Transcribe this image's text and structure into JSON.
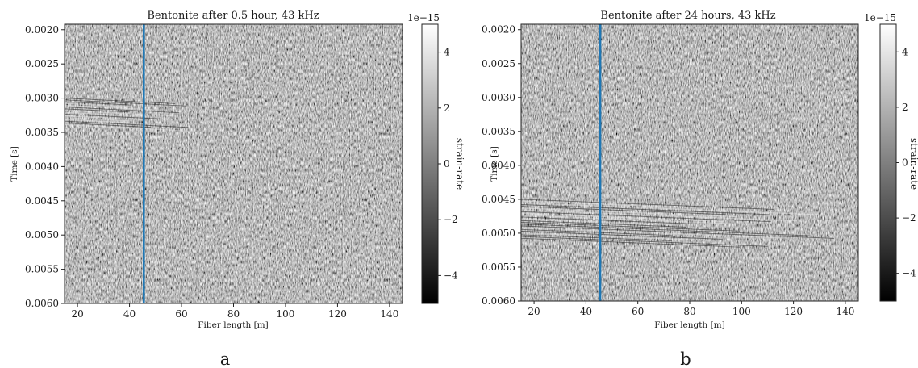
{
  "figure": {
    "panel_letters": [
      "a",
      "b"
    ]
  },
  "chart_data": [
    {
      "type": "heatmap",
      "title": "Bentonite after 0.5 hour, 43 kHz",
      "xlabel": "Fiber length [m]",
      "ylabel": "Time [s]",
      "xlim": [
        15,
        145
      ],
      "ylim": [
        0.006,
        0.00192
      ],
      "y_inverted": true,
      "xticks": [
        20,
        40,
        60,
        80,
        100,
        120,
        140
      ],
      "xtick_labels": [
        "20",
        "40",
        "60",
        "80",
        "100",
        "120",
        "140"
      ],
      "yticks": [
        0.002,
        0.0025,
        0.003,
        0.0035,
        0.004,
        0.0045,
        0.005,
        0.0055,
        0.006
      ],
      "ytick_labels": [
        "0.0020",
        "0.0025",
        "0.0030",
        "0.0035",
        "0.0040",
        "0.0045",
        "0.0050",
        "0.0055",
        "0.0060"
      ],
      "colormap": "gray",
      "colorbar": {
        "label": "strain-rate",
        "exponent_label": "1e−15",
        "range": [
          -5,
          5
        ],
        "ticks": [
          4,
          2,
          0,
          -2,
          -4
        ],
        "tick_labels": [
          "4",
          "2",
          "0",
          "−2",
          "−4"
        ]
      },
      "vertical_line": {
        "x": 45.5,
        "color": "#1f77b4"
      },
      "reflection_band": {
        "start_time": 0.003,
        "end_time": 0.0034,
        "x_extent": [
          15,
          65
        ]
      }
    },
    {
      "type": "heatmap",
      "title": "Bentonite after 24 hours, 43 kHz",
      "xlabel": "Fiber length [m]",
      "ylabel": "Time [s]",
      "xlim": [
        15,
        145
      ],
      "ylim": [
        0.006,
        0.00192
      ],
      "y_inverted": true,
      "xticks": [
        20,
        40,
        60,
        80,
        100,
        120,
        140
      ],
      "xtick_labels": [
        "20",
        "40",
        "60",
        "80",
        "100",
        "120",
        "140"
      ],
      "yticks": [
        0.002,
        0.0025,
        0.003,
        0.0035,
        0.004,
        0.0045,
        0.005,
        0.0055,
        0.006
      ],
      "ytick_labels": [
        "0.0020",
        "0.0025",
        "0.0030",
        "0.0035",
        "0.0040",
        "0.0045",
        "0.0050",
        "0.0055",
        "0.0060"
      ],
      "colormap": "gray",
      "colorbar": {
        "label": "strain-rate",
        "exponent_label": "1e−15",
        "range": [
          -5,
          5
        ],
        "ticks": [
          4,
          2,
          0,
          -2,
          -4
        ],
        "tick_labels": [
          "4",
          "2",
          "0",
          "−2",
          "−4"
        ]
      },
      "vertical_line": {
        "x": 45.5,
        "color": "#1f77b4"
      },
      "reflection_band": {
        "start_time": 0.0045,
        "end_time": 0.0051,
        "x_extent": [
          15,
          140
        ]
      }
    }
  ]
}
